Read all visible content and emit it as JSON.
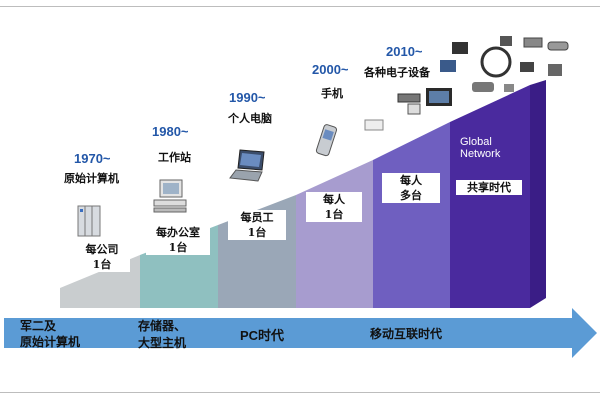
{
  "milestones": [
    {
      "year": "1970~",
      "era": "原始计算机",
      "device": "mainframe-icon"
    },
    {
      "year": "1980~",
      "era": "工作站",
      "device": "workstation-icon"
    },
    {
      "year": "1990~",
      "era": "个人电脑",
      "device": "laptop-icon"
    },
    {
      "year": "2000~",
      "era": "手机",
      "device": "mobile-phone-icon"
    },
    {
      "year": "2010~",
      "era": "各种电子设备",
      "device": "network-devices-icon"
    }
  ],
  "steps": [
    {
      "line1": "每公司",
      "line2": "1台",
      "color": "#c9cdcf"
    },
    {
      "line1": "每办公室",
      "line2": "1台",
      "color": "#8fc0c0"
    },
    {
      "line1": "每员工",
      "line2": "1台",
      "color": "#9aa7b7"
    },
    {
      "line1": "每人",
      "line2": "1台",
      "color": "#a79ccf"
    },
    {
      "line1": "每人",
      "line2": "多台",
      "color": "#6f5fc0"
    },
    {
      "line1": "Global",
      "line2": "Network",
      "line3": "共享时代",
      "color": "#4a2a9e"
    }
  ],
  "arrow": {
    "color": "#5b9bd5",
    "labels": [
      {
        "line1": "军二及",
        "line2": "原始计算机"
      },
      {
        "line1": "存储器、",
        "line2": "大型主机"
      },
      {
        "line1": "PC时代"
      },
      {
        "line1": "移动互联时代"
      }
    ]
  }
}
